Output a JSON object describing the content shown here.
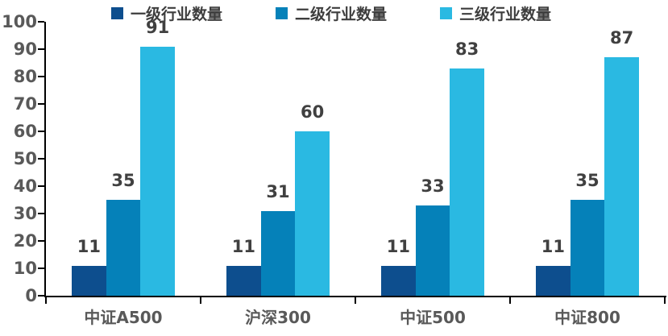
{
  "chart_data": {
    "type": "bar",
    "categories": [
      "中证A500",
      "沪深300",
      "中证500",
      "中证800"
    ],
    "series": [
      {
        "name": "一级行业数量",
        "color": "#0d4e8e",
        "values": [
          11,
          11,
          11,
          11
        ]
      },
      {
        "name": "二级行业数量",
        "color": "#0581b9",
        "values": [
          35,
          31,
          33,
          35
        ]
      },
      {
        "name": "三级行业数量",
        "color": "#2ab9e2",
        "values": [
          91,
          60,
          83,
          87
        ]
      }
    ],
    "title": "",
    "xlabel": "",
    "ylabel": "",
    "ylim": [
      0,
      100
    ],
    "ytick_step": 10,
    "yticks": [
      0,
      10,
      20,
      30,
      40,
      50,
      60,
      70,
      80,
      90,
      100
    ],
    "grid": false,
    "legend_position": "top",
    "data_labels": true
  },
  "colors": {
    "background": "#ffffff",
    "axis": "#000000",
    "axis_tick_label": "#595959",
    "value_label": "#404040",
    "legend_text": "#3d3d3d",
    "series_1": "#0d4e8e",
    "series_2": "#0581b9",
    "series_3": "#2ab9e2"
  }
}
